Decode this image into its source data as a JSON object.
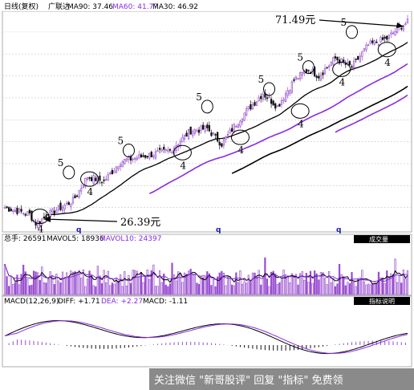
{
  "header": {
    "period": "日线(复权)",
    "stock": "广联达",
    "ma90": "MA90: 37.46",
    "ma60": "MA60: 41.77",
    "ma30": "MA30: 46.92"
  },
  "annotations": {
    "high_price": "71.49元",
    "low_price": "26.39元",
    "wave_five": "5",
    "wave_four": "4",
    "q_mark": "q"
  },
  "volume_panel": {
    "total": "总手: 26591",
    "mavol5": "MAVOL5: 18936",
    "mavol10": "MAVOL10: 24397",
    "tag": "成交量"
  },
  "macd_panel": {
    "title": "MACD(12,26,9)",
    "diff": "DIFF: +1.71",
    "dea": "DEA: +2.27",
    "macd": "MACD: -1.11",
    "tag": "指标说明"
  },
  "watermark": {
    "text": "关注微信 \"新哥股评\" 回复 \"指标\" 免费领"
  },
  "colors": {
    "up": "#9a4fd0",
    "down": "#111111",
    "ma_purple": "#8a2be2",
    "ma_black": "#000000",
    "grid": "#c8c8c8",
    "ellipse": "#000000"
  },
  "chart_data": {
    "type": "candlestick",
    "y_range": [
      25,
      74
    ],
    "price_low": 26.39,
    "price_high": 71.49,
    "grid": true,
    "price_path_anchors": [
      [
        0,
        30.0
      ],
      [
        12,
        28.5
      ],
      [
        15,
        26.39
      ],
      [
        25,
        29.5
      ],
      [
        33,
        31.5
      ],
      [
        40,
        37.0
      ],
      [
        48,
        36.0
      ],
      [
        56,
        40.5
      ],
      [
        65,
        41.5
      ],
      [
        80,
        43.0
      ],
      [
        90,
        47.5
      ],
      [
        98,
        48.0
      ],
      [
        105,
        44.5
      ],
      [
        115,
        51.0
      ],
      [
        125,
        56.0
      ],
      [
        132,
        53.0
      ],
      [
        140,
        59.0
      ],
      [
        147,
        61.5
      ],
      [
        152,
        60.0
      ],
      [
        160,
        64.0
      ],
      [
        168,
        62.0
      ],
      [
        176,
        67.0
      ],
      [
        185,
        68.5
      ],
      [
        192,
        71.49
      ]
    ],
    "wave_labels": [
      {
        "label": "4",
        "x": 17,
        "price": 28.0
      },
      {
        "label": "5",
        "x": 31,
        "price": 38.0
      },
      {
        "label": "4",
        "x": 41,
        "price": 36.5
      },
      {
        "label": "5",
        "x": 60,
        "price": 43.0
      },
      {
        "label": "4",
        "x": 86,
        "price": 42.5
      },
      {
        "label": "5",
        "x": 98,
        "price": 53.0
      },
      {
        "label": "4",
        "x": 114,
        "price": 46.0
      },
      {
        "label": "5",
        "x": 128,
        "price": 57.0
      },
      {
        "label": "4",
        "x": 143,
        "price": 52.0
      },
      {
        "label": "5",
        "x": 147,
        "price": 62.0
      },
      {
        "label": "4",
        "x": 163,
        "price": 61.5
      },
      {
        "label": "5",
        "x": 168,
        "price": 70.0
      },
      {
        "label": "4",
        "x": 185,
        "price": 66.0
      }
    ],
    "volume": {
      "range": [
        0,
        60000
      ],
      "total": 26591,
      "mavol5": 18936,
      "mavol10": 24397
    },
    "macd": {
      "diff": 1.71,
      "dea": 2.27,
      "macd": -1.11
    }
  }
}
